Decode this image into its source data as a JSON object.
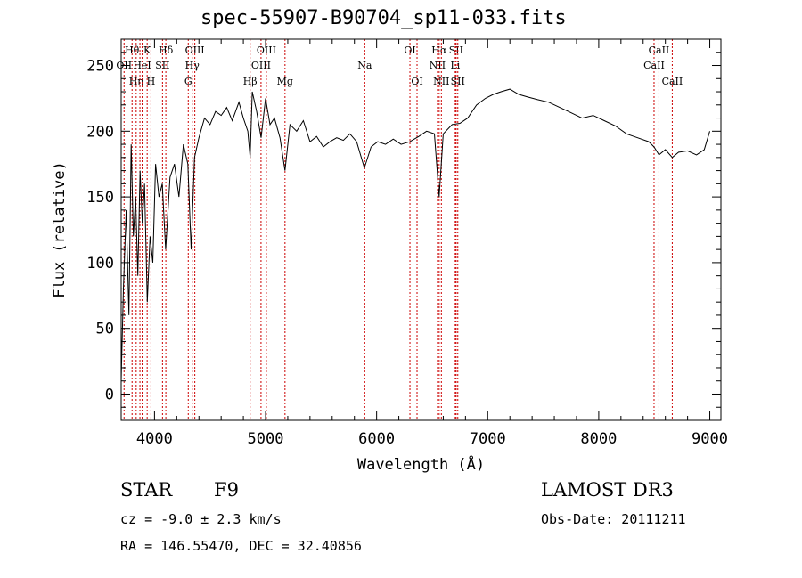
{
  "chart_data": {
    "type": "line",
    "title": "spec-55907-B90704_sp11-033.fits",
    "xlabel": "Wavelength (Å)",
    "ylabel": "Flux (relative)",
    "xlim": [
      3700,
      9100
    ],
    "ylim": [
      -20,
      270
    ],
    "xticks": [
      4000,
      5000,
      6000,
      7000,
      8000,
      9000
    ],
    "yticks": [
      0,
      50,
      100,
      150,
      200,
      250
    ],
    "series": [
      {
        "name": "spectrum",
        "x": [
          3700,
          3720,
          3745,
          3770,
          3790,
          3810,
          3830,
          3850,
          3870,
          3890,
          3910,
          3935,
          3960,
          3985,
          4010,
          4040,
          4070,
          4100,
          4140,
          4180,
          4220,
          4260,
          4300,
          4330,
          4360,
          4400,
          4450,
          4500,
          4550,
          4600,
          4650,
          4700,
          4760,
          4800,
          4840,
          4861,
          4880,
          4920,
          4960,
          5000,
          5040,
          5080,
          5130,
          5175,
          5220,
          5280,
          5340,
          5400,
          5460,
          5520,
          5580,
          5640,
          5700,
          5760,
          5820,
          5890,
          5950,
          6010,
          6080,
          6150,
          6220,
          6300,
          6380,
          6450,
          6520,
          6563,
          6600,
          6680,
          6750,
          6820,
          6900,
          6980,
          7050,
          7120,
          7200,
          7280,
          7360,
          7450,
          7550,
          7650,
          7750,
          7850,
          7950,
          8050,
          8150,
          8250,
          8350,
          8450,
          8498,
          8542,
          8600,
          8662,
          8720,
          8800,
          8880,
          8950,
          9000
        ],
        "values": [
          10,
          80,
          140,
          60,
          190,
          120,
          150,
          90,
          170,
          130,
          160,
          70,
          120,
          100,
          175,
          150,
          160,
          110,
          165,
          175,
          150,
          190,
          175,
          110,
          180,
          195,
          210,
          205,
          215,
          212,
          218,
          208,
          222,
          210,
          200,
          180,
          230,
          215,
          195,
          225,
          205,
          210,
          195,
          170,
          205,
          200,
          208,
          192,
          196,
          188,
          192,
          195,
          193,
          198,
          192,
          172,
          188,
          192,
          190,
          194,
          190,
          192,
          196,
          200,
          198,
          150,
          198,
          205,
          206,
          210,
          220,
          225,
          228,
          230,
          232,
          228,
          226,
          224,
          222,
          218,
          214,
          210,
          212,
          208,
          204,
          198,
          195,
          192,
          188,
          182,
          186,
          180,
          184,
          185,
          182,
          186,
          200
        ]
      }
    ],
    "lines": [
      {
        "wl": 3726,
        "label": "OII",
        "row": 1
      },
      {
        "wl": 3798,
        "label": "Hθ",
        "row": 0
      },
      {
        "wl": 3835,
        "label": "Hη",
        "row": 2
      },
      {
        "wl": 3869,
        "label": "",
        "row": 2
      },
      {
        "wl": 3889,
        "label": "HeI",
        "row": 1
      },
      {
        "wl": 3934,
        "label": "K",
        "row": 0
      },
      {
        "wl": 3968,
        "label": "H",
        "row": 2
      },
      {
        "wl": 4072,
        "label": "SII",
        "row": 1
      },
      {
        "wl": 4102,
        "label": "Hδ",
        "row": 0
      },
      {
        "wl": 4304,
        "label": "G",
        "row": 2
      },
      {
        "wl": 4340,
        "label": "Hγ",
        "row": 1
      },
      {
        "wl": 4363,
        "label": "OIII",
        "row": 0
      },
      {
        "wl": 4861,
        "label": "Hβ",
        "row": 2
      },
      {
        "wl": 4959,
        "label": "OIII",
        "row": 1
      },
      {
        "wl": 5007,
        "label": "OIII",
        "row": 0
      },
      {
        "wl": 5175,
        "label": "Mg",
        "row": 2
      },
      {
        "wl": 5893,
        "label": "Na",
        "row": 1
      },
      {
        "wl": 6300,
        "label": "OI",
        "row": 0
      },
      {
        "wl": 6364,
        "label": "OI",
        "row": 2
      },
      {
        "wl": 6548,
        "label": "NII",
        "row": 1
      },
      {
        "wl": 6563,
        "label": "Hα",
        "row": 0
      },
      {
        "wl": 6583,
        "label": "NII",
        "row": 2
      },
      {
        "wl": 6708,
        "label": "Li",
        "row": 1
      },
      {
        "wl": 6716,
        "label": "SII",
        "row": 0
      },
      {
        "wl": 6731,
        "label": "SII",
        "row": 2
      },
      {
        "wl": 8498,
        "label": "CaII",
        "row": 1
      },
      {
        "wl": 8542,
        "label": "CaII",
        "row": 0
      },
      {
        "wl": 8662,
        "label": "CaII",
        "row": 2
      }
    ]
  },
  "info": {
    "class": "STAR",
    "subclass": "F9",
    "survey": "LAMOST DR3",
    "cz": "cz = -9.0 ± 2.3 km/s",
    "obsdate": "Obs-Date: 20111211",
    "coords": "RA = 146.55470, DEC =  32.40856"
  },
  "colors": {
    "axis": "#000000",
    "spectrum": "#000000",
    "line_marker": "#cc0000"
  }
}
